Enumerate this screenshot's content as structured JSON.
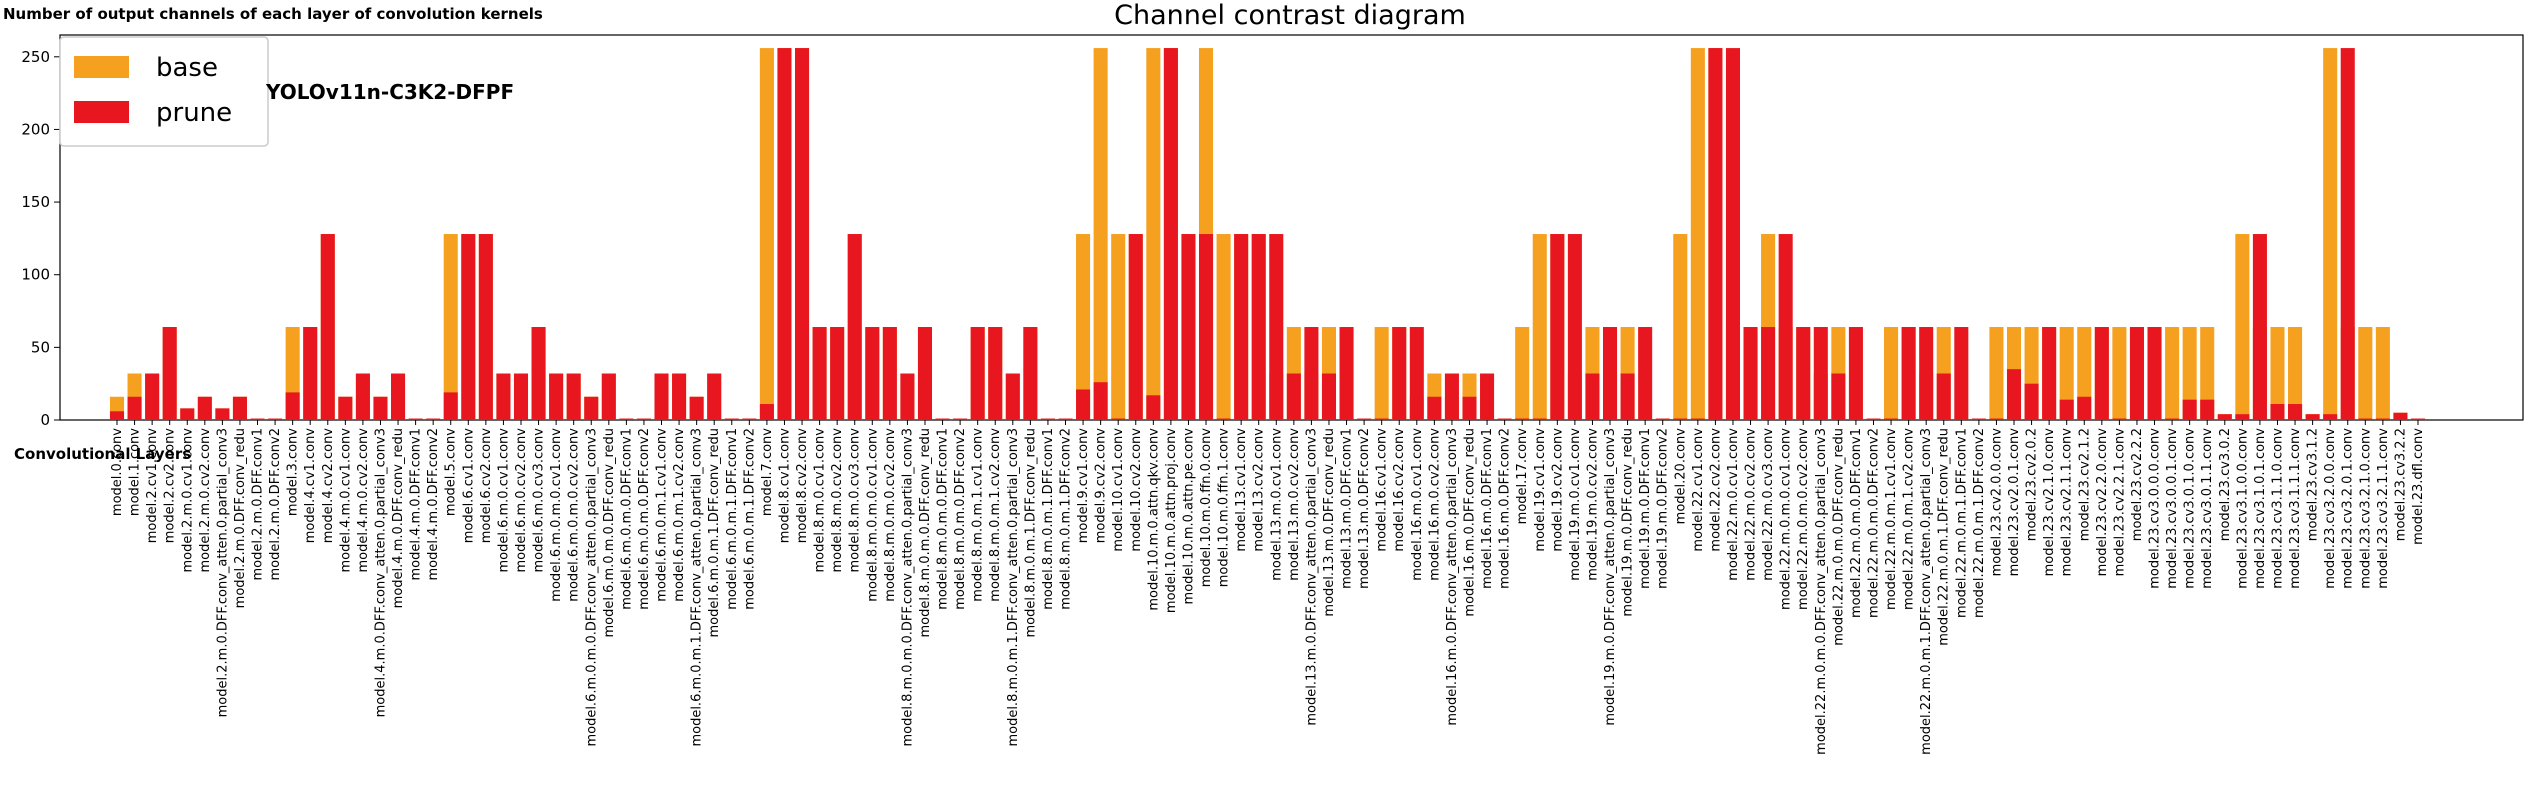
{
  "y_axis_header": "Number of output channels of each layer of convolution kernels",
  "x_axis_header": "Convolutional Layers",
  "chart_data": {
    "type": "bar",
    "title": "Channel contrast diagram",
    "annotation": "YOLOv11n-C3K2-DFPF",
    "xlabel": "Convolutional Layers",
    "ylabel": "Number of output channels of each layer of convolution kernels",
    "ylim": [
      0,
      265
    ],
    "yticks": [
      0,
      50,
      100,
      150,
      200,
      250
    ],
    "legend_position": "top-left",
    "colors": {
      "base": "#f5a01e",
      "prune": "#e8171f"
    },
    "categories": [
      "model.0.conv",
      "model.1.conv",
      "model.2.cv1.conv",
      "model.2.cv2.conv",
      "model.2.m.0.cv1.conv",
      "model.2.m.0.cv2.conv",
      "model.2.m.0.DFF.conv_atten.0.partial_conv3",
      "model.2.m.0.DFF.conv_redu",
      "model.2.m.0.DFF.conv1",
      "model.2.m.0.DFF.conv2",
      "model.3.conv",
      "model.4.cv1.conv",
      "model.4.cv2.conv",
      "model.4.m.0.cv1.conv",
      "model.4.m.0.cv2.conv",
      "model.4.m.0.DFF.conv_atten.0.partial_conv3",
      "model.4.m.0.DFF.conv_redu",
      "model.4.m.0.DFF.conv1",
      "model.4.m.0.DFF.conv2",
      "model.5.conv",
      "model.6.cv1.conv",
      "model.6.cv2.conv",
      "model.6.m.0.cv1.conv",
      "model.6.m.0.cv2.conv",
      "model.6.m.0.cv3.conv",
      "model.6.m.0.m.0.cv1.conv",
      "model.6.m.0.m.0.cv2.conv",
      "model.6.m.0.m.0.DFF.conv_atten.0.partial_conv3",
      "model.6.m.0.m.0.DFF.conv_redu",
      "model.6.m.0.m.0.DFF.conv1",
      "model.6.m.0.m.0.DFF.conv2",
      "model.6.m.0.m.1.cv1.conv",
      "model.6.m.0.m.1.cv2.conv",
      "model.6.m.0.m.1.DFF.conv_atten.0.partial_conv3",
      "model.6.m.0.m.1.DFF.conv_redu",
      "model.6.m.0.m.1.DFF.conv1",
      "model.6.m.0.m.1.DFF.conv2",
      "model.7.conv",
      "model.8.cv1.conv",
      "model.8.cv2.conv",
      "model.8.m.0.cv1.conv",
      "model.8.m.0.cv2.conv",
      "model.8.m.0.cv3.conv",
      "model.8.m.0.m.0.cv1.conv",
      "model.8.m.0.m.0.cv2.conv",
      "model.8.m.0.m.0.DFF.conv_atten.0.partial_conv3",
      "model.8.m.0.m.0.DFF.conv_redu",
      "model.8.m.0.m.0.DFF.conv1",
      "model.8.m.0.m.0.DFF.conv2",
      "model.8.m.0.m.1.cv1.conv",
      "model.8.m.0.m.1.cv2.conv",
      "model.8.m.0.m.1.DFF.conv_atten.0.partial_conv3",
      "model.8.m.0.m.1.DFF.conv_redu",
      "model.8.m.0.m.1.DFF.conv1",
      "model.8.m.0.m.1.DFF.conv2",
      "model.9.cv1.conv",
      "model.9.cv2.conv",
      "model.10.cv1.conv",
      "model.10.cv2.conv",
      "model.10.m.0.attn.qkv.conv",
      "model.10.m.0.attn.proj.conv",
      "model.10.m.0.attn.pe.conv",
      "model.10.m.0.ffn.0.conv",
      "model.10.m.0.ffn.1.conv",
      "model.13.cv1.conv",
      "model.13.cv2.conv",
      "model.13.m.0.cv1.conv",
      "model.13.m.0.cv2.conv",
      "model.13.m.0.DFF.conv_atten.0.partial_conv3",
      "model.13.m.0.DFF.conv_redu",
      "model.13.m.0.DFF.conv1",
      "model.13.m.0.DFF.conv2",
      "model.16.cv1.conv",
      "model.16.cv2.conv",
      "model.16.m.0.cv1.conv",
      "model.16.m.0.cv2.conv",
      "model.16.m.0.DFF.conv_atten.0.partial_conv3",
      "model.16.m.0.DFF.conv_redu",
      "model.16.m.0.DFF.conv1",
      "model.16.m.0.DFF.conv2",
      "model.17.conv",
      "model.19.cv1.conv",
      "model.19.cv2.conv",
      "model.19.m.0.cv1.conv",
      "model.19.m.0.cv2.conv",
      "model.19.m.0.DFF.conv_atten.0.partial_conv3",
      "model.19.m.0.DFF.conv_redu",
      "model.19.m.0.DFF.conv1",
      "model.19.m.0.DFF.conv2",
      "model.20.conv",
      "model.22.cv1.conv",
      "model.22.cv2.conv",
      "model.22.m.0.cv1.conv",
      "model.22.m.0.cv2.conv",
      "model.22.m.0.cv3.conv",
      "model.22.m.0.m.0.cv1.conv",
      "model.22.m.0.m.0.cv2.conv",
      "model.22.m.0.m.0.DFF.conv_atten.0.partial_conv3",
      "model.22.m.0.m.0.DFF.conv_redu",
      "model.22.m.0.m.0.DFF.conv1",
      "model.22.m.0.m.0.DFF.conv2",
      "model.22.m.0.m.1.cv1.conv",
      "model.22.m.0.m.1.cv2.conv",
      "model.22.m.0.m.1.DFF.conv_atten.0.partial_conv3",
      "model.22.m.0.m.1.DFF.conv_redu",
      "model.22.m.0.m.1.DFF.conv1",
      "model.22.m.0.m.1.DFF.conv2",
      "model.23.cv2.0.0.conv",
      "model.23.cv2.0.1.conv",
      "model.23.cv2.0.2",
      "model.23.cv2.1.0.conv",
      "model.23.cv2.1.1.conv",
      "model.23.cv2.1.2",
      "model.23.cv2.2.0.conv",
      "model.23.cv2.2.1.conv",
      "model.23.cv2.2.2",
      "model.23.cv3.0.0.0.conv",
      "model.23.cv3.0.0.1.conv",
      "model.23.cv3.0.1.0.conv",
      "model.23.cv3.0.1.1.conv",
      "model.23.cv3.0.2",
      "model.23.cv3.1.0.0.conv",
      "model.23.cv3.1.0.1.conv",
      "model.23.cv3.1.1.0.conv",
      "model.23.cv3.1.1.1.conv",
      "model.23.cv3.1.2",
      "model.23.cv3.2.0.0.conv",
      "model.23.cv3.2.0.1.conv",
      "model.23.cv3.2.1.0.conv",
      "model.23.cv3.2.1.1.conv",
      "model.23.cv3.2.2",
      "model.23.dfl.conv"
    ],
    "series": [
      {
        "name": "base",
        "values": [
          16,
          32,
          32,
          64,
          8,
          16,
          8,
          16,
          1,
          1,
          64,
          64,
          128,
          16,
          32,
          16,
          32,
          1,
          1,
          128,
          128,
          128,
          32,
          32,
          64,
          32,
          32,
          16,
          32,
          1,
          1,
          32,
          32,
          16,
          32,
          1,
          1,
          256,
          256,
          256,
          64,
          64,
          128,
          64,
          64,
          32,
          64,
          1,
          1,
          64,
          64,
          32,
          64,
          1,
          1,
          128,
          256,
          128,
          128,
          256,
          256,
          128,
          256,
          128,
          128,
          128,
          32,
          64,
          32,
          64,
          1,
          1,
          64,
          64,
          16,
          32,
          16,
          32,
          1,
          1,
          64,
          128,
          128,
          32,
          64,
          32,
          64,
          1,
          1,
          128,
          256,
          256,
          64,
          64,
          128,
          64,
          64,
          32,
          64,
          1,
          1,
          64,
          64,
          32,
          64,
          1,
          1,
          64,
          64,
          64,
          64,
          64,
          64,
          64,
          64,
          64,
          64,
          64,
          64,
          64,
          4,
          128,
          64,
          64,
          64,
          4,
          256,
          64,
          64,
          64,
          5,
          1
        ]
      },
      {
        "name": "prune",
        "values": [
          6,
          16,
          32,
          64,
          8,
          16,
          8,
          16,
          1,
          1,
          19,
          64,
          128,
          16,
          32,
          16,
          32,
          1,
          1,
          19,
          128,
          128,
          32,
          32,
          64,
          32,
          32,
          16,
          32,
          1,
          1,
          32,
          32,
          16,
          32,
          1,
          1,
          11,
          256,
          256,
          64,
          64,
          128,
          64,
          64,
          32,
          64,
          1,
          1,
          64,
          64,
          32,
          64,
          1,
          1,
          21,
          26,
          1,
          128,
          17,
          256,
          128,
          128,
          1,
          128,
          128,
          128,
          32,
          64,
          32,
          64,
          1,
          1,
          64,
          64,
          16,
          32,
          16,
          32,
          1,
          1,
          1,
          128,
          128,
          32,
          64,
          32,
          64,
          1,
          1,
          1,
          256,
          256,
          64,
          64,
          128,
          64,
          64,
          32,
          64,
          1,
          1,
          64,
          64,
          32,
          64,
          1,
          1,
          35,
          25,
          64,
          14,
          16,
          64,
          1,
          64,
          64,
          1,
          14,
          14,
          4,
          4,
          128,
          11,
          11,
          4,
          4,
          256,
          1,
          1,
          5,
          1
        ]
      }
    ]
  }
}
